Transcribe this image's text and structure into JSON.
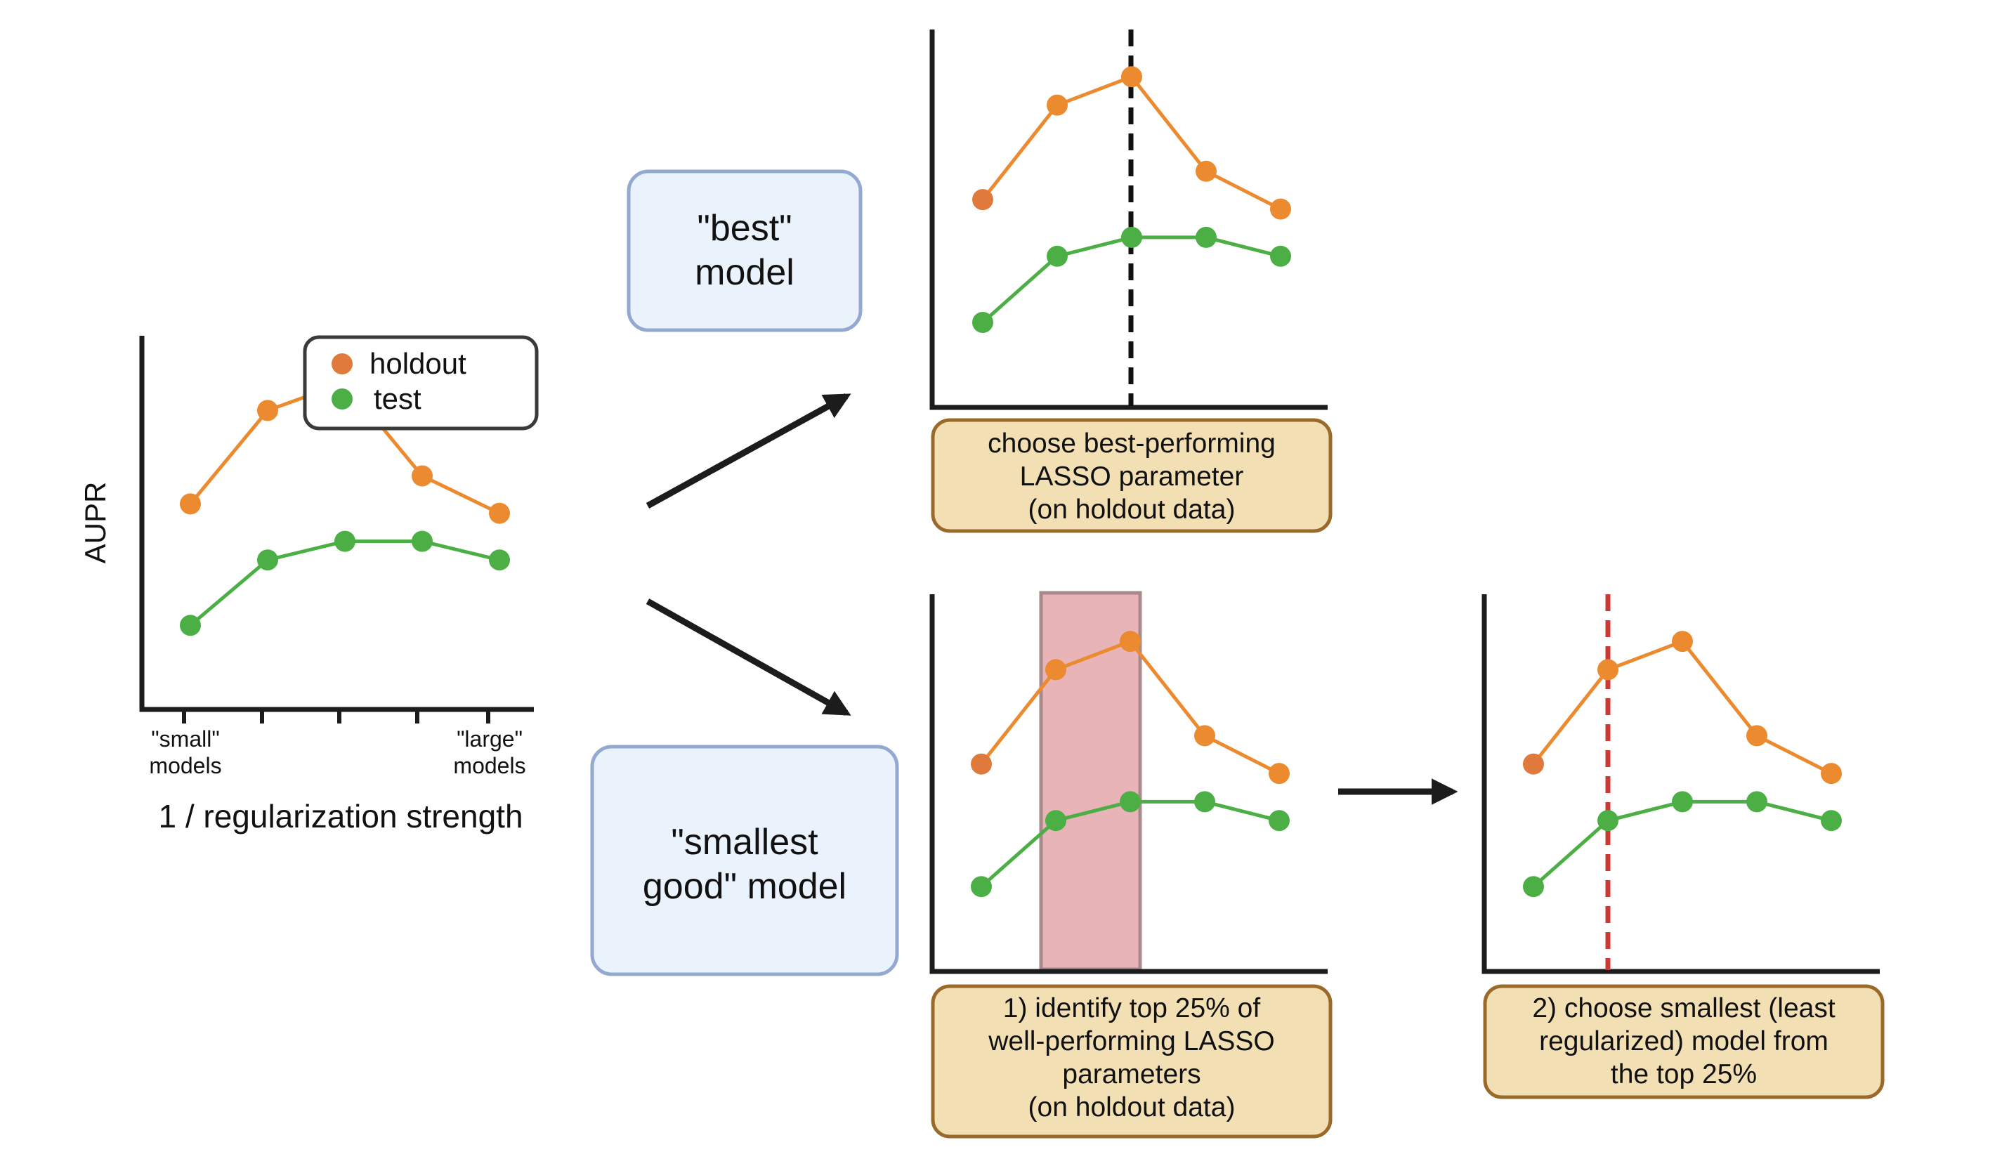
{
  "colors": {
    "holdout": "#EB8A2E",
    "holdout_first": "#E07A3C",
    "test": "#4CAF45",
    "axis": "#1c1c1c",
    "arrow": "#1c1c1c",
    "model_box_fill": "#EAF2FB",
    "model_box_stroke": "#93A9D2",
    "note_fill": "#F2E0B4",
    "note_stroke": "#9A6A2B",
    "band_fill": "#E8B4B8",
    "band_stroke": "#A88A8C",
    "black_dash": "#111111",
    "red_dash": "#CC3A36"
  },
  "series_names": {
    "holdout": "holdout",
    "test": "test"
  },
  "main_plot": {
    "ylabel": "AUPR",
    "xlabel": "1 / regularization strength",
    "tick_left_line1": "\"small\"",
    "tick_left_line2": "models",
    "tick_right_line1": "\"large\"",
    "tick_right_line2": "models"
  },
  "chart_data": {
    "type": "line",
    "x": [
      1,
      2,
      3,
      4,
      5
    ],
    "series": [
      {
        "name": "holdout",
        "values": [
          0.62,
          0.72,
          0.75,
          0.65,
          0.61
        ]
      },
      {
        "name": "test",
        "values": [
          0.49,
          0.56,
          0.58,
          0.58,
          0.56
        ]
      }
    ],
    "ylim": [
      0.4,
      0.8
    ],
    "best_index": 2,
    "top25_range": [
      1,
      2
    ],
    "smallest_good_index": 1
  },
  "boxes": {
    "best_line1": "\"best\"",
    "best_line2": "model",
    "smallest_line1": "\"smallest",
    "smallest_line2": "good\" model"
  },
  "notes": {
    "best_line1": "choose best-performing",
    "best_line2": "LASSO parameter",
    "best_line3": "(on holdout data)",
    "step1_line1": "1) identify top 25% of",
    "step1_line2": "well-performing LASSO",
    "step1_line3": "parameters",
    "step1_line4": "(on holdout data)",
    "step2_line1": "2) choose smallest (least",
    "step2_line2": "regularized) model from",
    "step2_line3": "the top 25%"
  }
}
